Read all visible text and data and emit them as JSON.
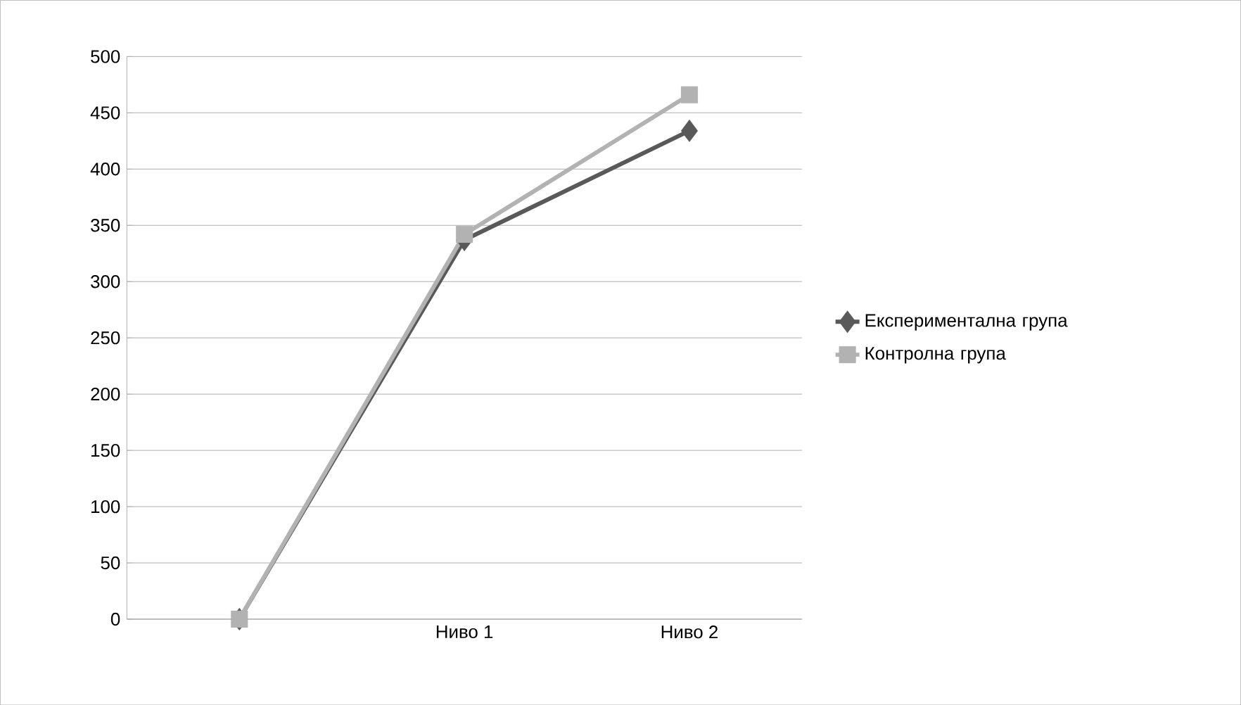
{
  "chart_data": {
    "type": "line",
    "categories": [
      null,
      "Ниво 1",
      "Ниво 2"
    ],
    "series": [
      {
        "name": "Експериментална група",
        "color": "#595959",
        "values": [
          0,
          337,
          434
        ],
        "marker": "diamond"
      },
      {
        "name": "Контролна група",
        "color": "#b2b2b2",
        "values": [
          0,
          342,
          466
        ],
        "marker": "square"
      }
    ],
    "ylim": [
      0,
      500
    ],
    "yticks": [
      0,
      50,
      100,
      150,
      200,
      250,
      300,
      350,
      400,
      450,
      500
    ],
    "grid": "y",
    "legend": "right"
  }
}
